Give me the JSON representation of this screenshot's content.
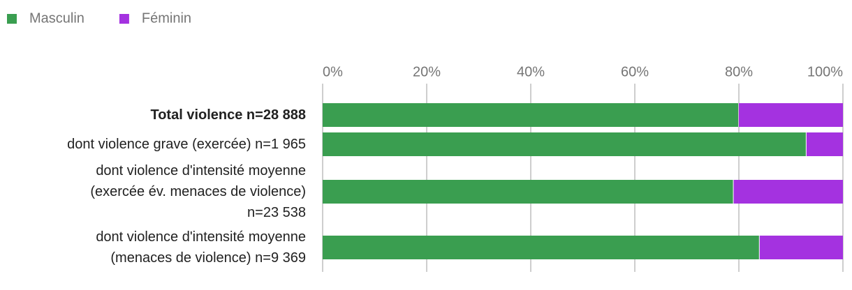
{
  "chart_data": {
    "type": "stacked_bar_horizontal",
    "categories": [
      "Total violence n=28 888",
      "dont violence grave (exercée) n=1 965",
      "dont violence d'intensité moyenne\n(exercée év. menaces de violence)\nn=23 538",
      "dont violence d'intensité moyenne\n(menaces de violence) n=9 369"
    ],
    "series": [
      {
        "name": "Masculin",
        "color": "#3a9e50",
        "values": [
          80,
          93,
          79,
          84
        ]
      },
      {
        "name": "Féminin",
        "color": "#a432e0",
        "values": [
          20,
          7,
          21,
          16
        ]
      }
    ],
    "xlim": [
      0,
      100
    ],
    "xticks": [
      {
        "value": 0,
        "label": "0%"
      },
      {
        "value": 20,
        "label": "20%"
      },
      {
        "value": 40,
        "label": "40%"
      },
      {
        "value": 60,
        "label": "60%"
      },
      {
        "value": 80,
        "label": "80%"
      },
      {
        "value": 100,
        "label": "100%"
      }
    ],
    "grid": true,
    "legend": "top-left"
  }
}
